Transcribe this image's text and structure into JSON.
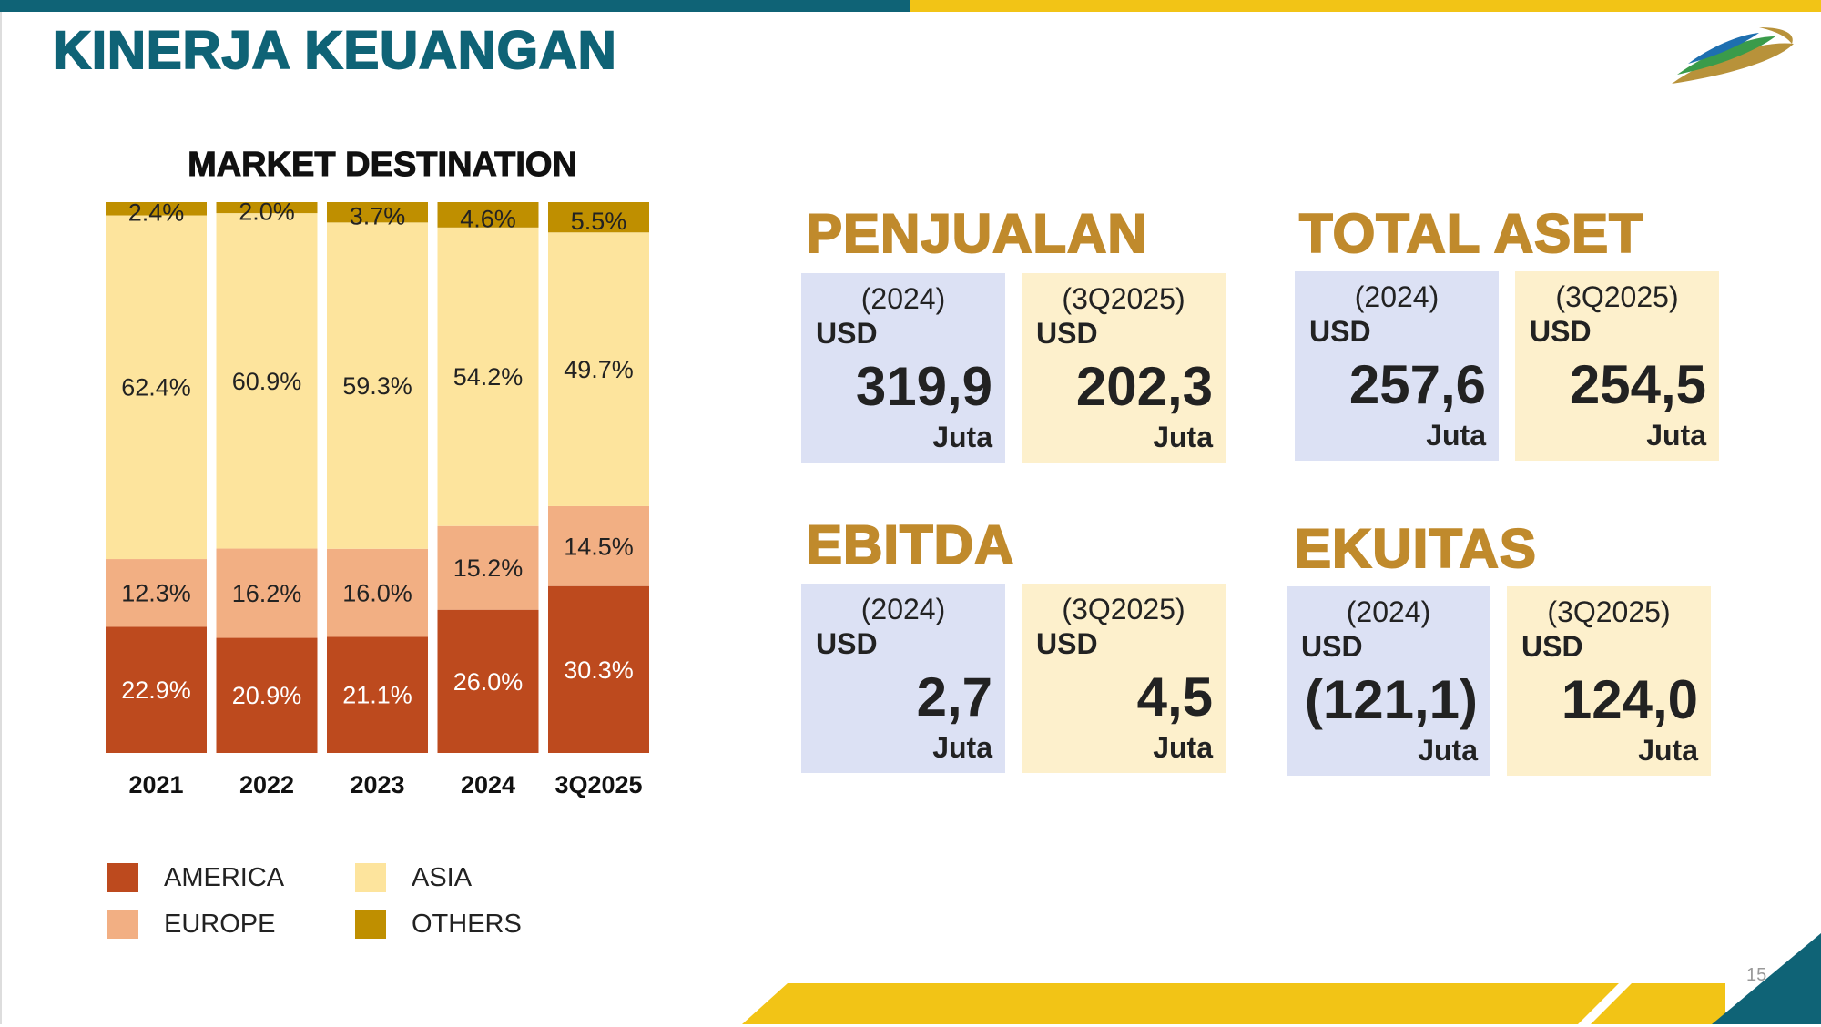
{
  "page": {
    "title": "KINERJA KEUANGAN",
    "page_number": "15"
  },
  "colors": {
    "teal": "#0f6376",
    "gold": "#f2c416",
    "heading_gold": "#c08a2c",
    "america": "#bd4a1e",
    "europe": "#f2af83",
    "asia": "#fde49d",
    "others": "#bf8f00"
  },
  "chart_data": {
    "type": "bar",
    "stacked": true,
    "title": "MARKET DESTINATION",
    "categories": [
      "2021",
      "2022",
      "2023",
      "2024",
      "3Q2025"
    ],
    "series": [
      {
        "name": "AMERICA",
        "values": [
          22.9,
          20.9,
          21.1,
          26.0,
          30.3
        ],
        "labels": [
          "22.9%",
          "20.9%",
          "21.1%",
          "26.0%",
          "30.3%"
        ]
      },
      {
        "name": "EUROPE",
        "values": [
          12.3,
          16.2,
          16.0,
          15.2,
          14.5
        ],
        "labels": [
          "12.3%",
          "16.2%",
          "16.0%",
          "15.2%",
          "14.5%"
        ]
      },
      {
        "name": "ASIA",
        "values": [
          62.4,
          60.9,
          59.3,
          54.2,
          49.7
        ],
        "labels": [
          "62.4%",
          "60.9%",
          "59.3%",
          "54.2%",
          "49.7%"
        ]
      },
      {
        "name": "OTHERS",
        "values": [
          2.4,
          2.0,
          3.7,
          4.6,
          5.5
        ],
        "labels": [
          "2.4%",
          "2.0%",
          "3.7%",
          "4.6%",
          "5.5%"
        ]
      }
    ],
    "ylim": [
      0,
      100
    ],
    "legend": [
      "AMERICA",
      "ASIA",
      "EUROPE",
      "OTHERS"
    ],
    "legend_position": "bottom"
  },
  "kpis": {
    "penjualan": {
      "title": "PENJUALAN",
      "left": {
        "period": "(2024)",
        "currency": "USD",
        "value": "319,9",
        "unit": "Juta"
      },
      "right": {
        "period": "(3Q2025)",
        "currency": "USD",
        "value": "202,3",
        "unit": "Juta"
      }
    },
    "total_aset": {
      "title": "TOTAL ASET",
      "left": {
        "period": "(2024)",
        "currency": "USD",
        "value": "257,6",
        "unit": "Juta"
      },
      "right": {
        "period": "(3Q2025)",
        "currency": "USD",
        "value": "254,5",
        "unit": "Juta"
      }
    },
    "ebitda": {
      "title": "EBITDA",
      "left": {
        "period": "(2024)",
        "currency": "USD",
        "value": "2,7",
        "unit": "Juta"
      },
      "right": {
        "period": "(3Q2025)",
        "currency": "USD",
        "value": "4,5",
        "unit": "Juta"
      }
    },
    "ekuitas": {
      "title": "EKUITAS",
      "left": {
        "period": "(2024)",
        "currency": "USD",
        "value": "(121,1)",
        "unit": "Juta"
      },
      "right": {
        "period": "(3Q2025)",
        "currency": "USD",
        "value": "124,0",
        "unit": "Juta"
      }
    }
  }
}
